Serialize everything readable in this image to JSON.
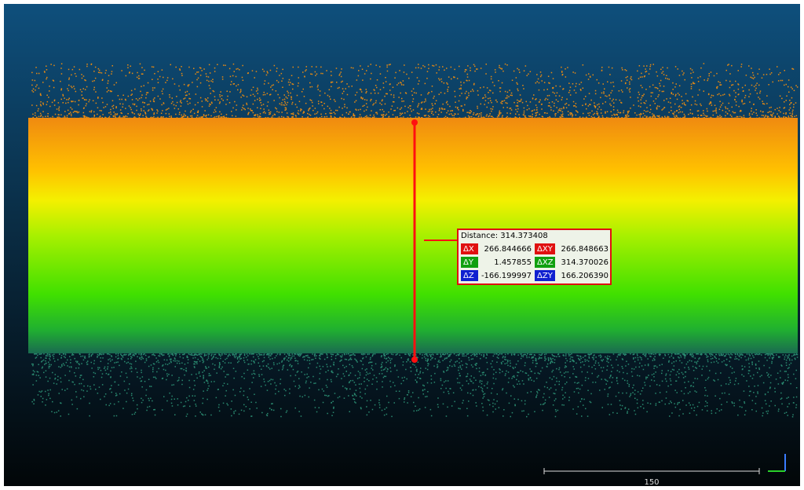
{
  "measurement": {
    "title": "Distance: 314.373408",
    "rows": [
      [
        "ΔX",
        "266.844666",
        "ΔXY",
        "266.848663"
      ],
      [
        "ΔY",
        "1.457855",
        "ΔXZ",
        "314.370026"
      ],
      [
        "ΔZ",
        "-166.199997",
        "ΔZY",
        "166.206390"
      ]
    ]
  },
  "scale_bar": {
    "label": "150"
  }
}
